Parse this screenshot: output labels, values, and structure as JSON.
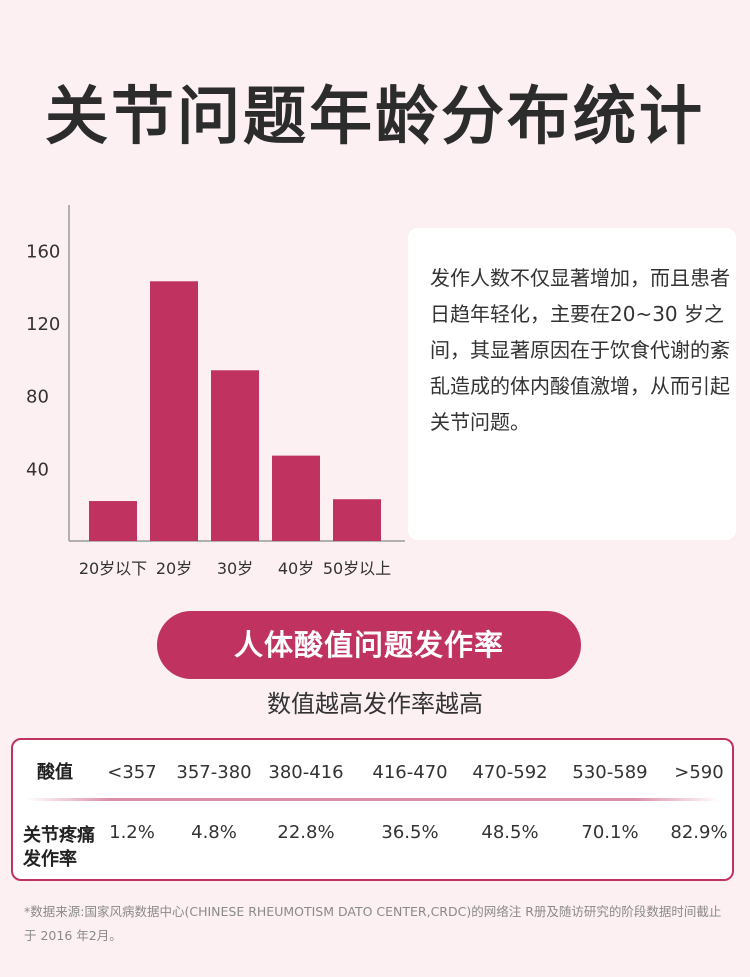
{
  "title": "关节问题年龄分布统计",
  "chart_data": {
    "type": "bar",
    "categories": [
      "20岁以下",
      "20岁",
      "30岁",
      "40岁",
      "50岁以上"
    ],
    "values": [
      22,
      143,
      94,
      47,
      23
    ],
    "yticks": [
      "40",
      "80",
      "120",
      "160"
    ],
    "ylim": [
      0,
      185
    ],
    "bar_color": "#c0325f"
  },
  "info_text": "发作人数不仅显著增加，而且患者日趋年轻化，主要在20~30 岁之间，其显著原因在于饮食代谢的紊乱造成的体内酸值激增，从而引起关节问题。",
  "pill_label": "人体酸值问题发作率",
  "subtitle": "数值越高发作率越高",
  "table": {
    "row1_header": "酸值",
    "row2_header_line1": "关节疼痛",
    "row2_header_line2": "发作率",
    "acid_values": [
      "<357",
      "357-380",
      "380-416",
      "416-470",
      "470-592",
      "530-589",
      ">590"
    ],
    "rates": [
      "1.2%",
      "4.8%",
      "22.8%",
      "36.5%",
      "48.5%",
      "70.1%",
      "82.9%"
    ]
  },
  "footnote": "*数据来源:国家风病数据中心(CHINESE RHEUMOTISM DATO CENTER,CRDC)的网络注 R册及随访研究的阶段数据时间截止于 2016 年2月。",
  "colors": {
    "accent": "#c0325f",
    "background": "#fcf0f3"
  }
}
